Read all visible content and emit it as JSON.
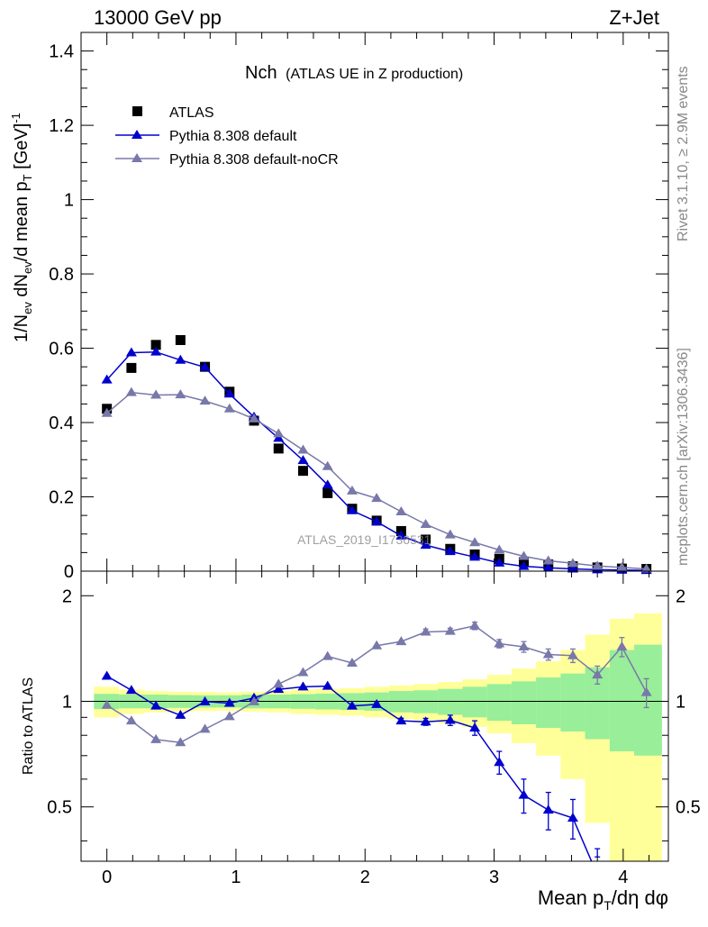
{
  "header": {
    "left": "13000 GeV pp",
    "right": "Z+Jet"
  },
  "side_text": {
    "rivet": "Rivet 3.1.10, ≥ 2.9M events",
    "mcplots": "mcplots.cern.ch [arXiv:1306.3436]"
  },
  "watermark": "ATLAS_2019_I1736531",
  "chart_data": [
    {
      "type": "scatter",
      "panel": "main",
      "title": "Nch",
      "subtitle": "(ATLAS UE in Z production)",
      "ylabel": "1/N_ev dN_ev/d mean p_T [GeV]^-1",
      "xlim": [
        -0.2,
        4.35
      ],
      "ylim": [
        0,
        1.45
      ],
      "x_ticks": [
        "0",
        "1",
        "2",
        "3",
        "4"
      ],
      "y_ticks": [
        "0",
        "0.2",
        "0.4",
        "0.6",
        "0.8",
        "1",
        "1.2",
        "1.4"
      ],
      "legend_position": "top-left",
      "x": [
        0,
        0.19,
        0.38,
        0.57,
        0.76,
        0.95,
        1.14,
        1.33,
        1.52,
        1.71,
        1.9,
        2.09,
        2.28,
        2.47,
        2.66,
        2.85,
        3.04,
        3.23,
        3.42,
        3.61,
        3.8,
        3.99,
        4.18
      ],
      "series": [
        {
          "name": "ATLAS",
          "color": "#000000",
          "marker": "square",
          "values": [
            0.437,
            0.547,
            0.609,
            0.622,
            0.55,
            0.483,
            0.405,
            0.33,
            0.27,
            0.21,
            0.168,
            0.136,
            0.108,
            0.085,
            0.06,
            0.045,
            0.033,
            0.024,
            0.018,
            0.013,
            0.01,
            0.007,
            0.006
          ]
        },
        {
          "name": "Pythia 8.308 default",
          "color": "#0000cc",
          "marker": "triangle",
          "values": [
            0.515,
            0.588,
            0.59,
            0.568,
            0.549,
            0.477,
            0.415,
            0.358,
            0.298,
            0.232,
            0.163,
            0.133,
            0.095,
            0.07,
            0.053,
            0.038,
            0.022,
            0.013,
            0.009,
            0.006,
            0.004,
            0.003,
            0.002
          ]
        },
        {
          "name": "Pythia 8.308 default-noCR",
          "color": "#7878aa",
          "marker": "triangle",
          "values": [
            0.425,
            0.481,
            0.474,
            0.475,
            0.458,
            0.437,
            0.41,
            0.37,
            0.326,
            0.282,
            0.216,
            0.196,
            0.16,
            0.126,
            0.098,
            0.077,
            0.057,
            0.04,
            0.028,
            0.021,
            0.014,
            0.01,
            0.006
          ]
        }
      ]
    },
    {
      "type": "line",
      "panel": "ratio",
      "ylabel": "Ratio to ATLAS",
      "xlabel": "Mean p_T/dη dφ",
      "xlim": [
        -0.2,
        4.35
      ],
      "ylim": [
        0.35,
        2.35
      ],
      "x_ticks": [
        "0",
        "1",
        "2",
        "3",
        "4"
      ],
      "y_ticks": [
        "0.5",
        "1",
        "2"
      ],
      "band_edges": [
        -0.1,
        0.095,
        0.285,
        0.475,
        0.665,
        0.855,
        1.045,
        1.235,
        1.425,
        1.615,
        1.805,
        1.995,
        2.185,
        2.375,
        2.565,
        2.755,
        2.945,
        3.135,
        3.325,
        3.515,
        3.705,
        3.895,
        4.085,
        4.3
      ],
      "band_green_lo": [
        0.95,
        0.955,
        0.955,
        0.958,
        0.96,
        0.96,
        0.955,
        0.955,
        0.952,
        0.948,
        0.945,
        0.94,
        0.93,
        0.925,
        0.915,
        0.9,
        0.88,
        0.86,
        0.84,
        0.82,
        0.78,
        0.72,
        0.7
      ],
      "band_green_hi": [
        1.05,
        1.045,
        1.045,
        1.042,
        1.04,
        1.04,
        1.045,
        1.045,
        1.048,
        1.052,
        1.055,
        1.06,
        1.07,
        1.075,
        1.085,
        1.1,
        1.12,
        1.14,
        1.17,
        1.2,
        1.25,
        1.4,
        1.45
      ],
      "band_yellow_lo": [
        0.9,
        0.92,
        0.93,
        0.935,
        0.938,
        0.94,
        0.935,
        0.93,
        0.92,
        0.915,
        0.91,
        0.9,
        0.89,
        0.88,
        0.865,
        0.845,
        0.81,
        0.76,
        0.7,
        0.6,
        0.45,
        0.3,
        0.3
      ],
      "band_yellow_hi": [
        1.1,
        1.08,
        1.07,
        1.065,
        1.062,
        1.06,
        1.065,
        1.07,
        1.08,
        1.085,
        1.09,
        1.1,
        1.11,
        1.12,
        1.135,
        1.155,
        1.19,
        1.24,
        1.3,
        1.4,
        1.55,
        1.72,
        1.78
      ],
      "x": [
        0,
        0.19,
        0.38,
        0.57,
        0.76,
        0.95,
        1.14,
        1.33,
        1.52,
        1.71,
        1.9,
        2.09,
        2.28,
        2.47,
        2.66,
        2.85,
        3.04,
        3.23,
        3.42,
        3.61,
        3.8,
        3.99,
        4.18
      ],
      "series": [
        {
          "name": "Pythia 8.308 default",
          "color": "#0000cc",
          "values": [
            1.18,
            1.075,
            0.97,
            0.913,
            0.998,
            0.988,
            1.022,
            1.082,
            1.1,
            1.105,
            0.97,
            0.98,
            0.88,
            0.874,
            0.883,
            0.84,
            0.67,
            0.54,
            0.49,
            0.465,
            0.32,
            null,
            null
          ],
          "err": [
            0,
            0,
            0,
            0,
            0,
            0,
            0,
            0,
            0,
            0,
            0,
            0.01,
            0.015,
            0.02,
            0.03,
            0.04,
            0.05,
            0.06,
            0.06,
            0.06,
            0.06,
            0,
            0
          ]
        },
        {
          "name": "Pythia 8.308 default-noCR",
          "color": "#7878aa",
          "values": [
            0.975,
            0.88,
            0.778,
            0.763,
            0.833,
            0.905,
            0.998,
            1.12,
            1.208,
            1.343,
            1.286,
            1.441,
            1.481,
            1.577,
            1.585,
            1.641,
            1.46,
            1.43,
            1.36,
            1.35,
            1.19,
            1.43,
            1.06
          ],
          "err": [
            0,
            0,
            0,
            0,
            0,
            0,
            0,
            0,
            0,
            0,
            0,
            0,
            0,
            0.03,
            0.03,
            0.04,
            0.04,
            0.05,
            0.05,
            0.06,
            0.07,
            0.09,
            0.1
          ]
        }
      ]
    }
  ]
}
